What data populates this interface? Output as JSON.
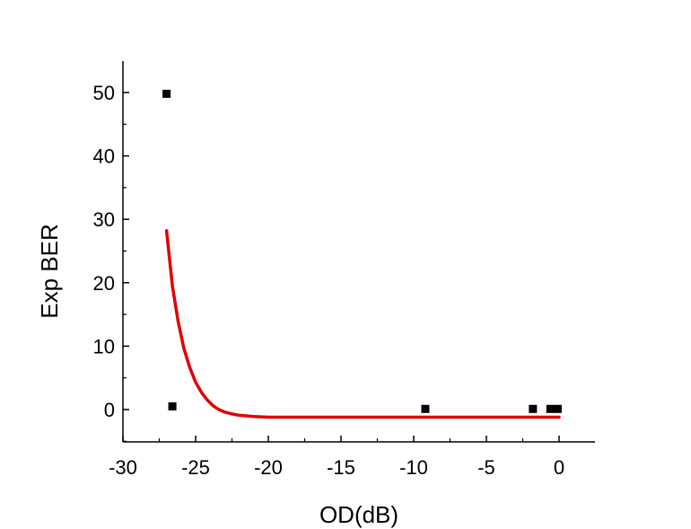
{
  "chart_data": {
    "type": "scatter",
    "xlabel": "OD(dB)",
    "ylabel": "Exp BER",
    "xlim": [
      -30,
      2.5
    ],
    "ylim": [
      -5,
      55
    ],
    "x_ticks": [
      -30,
      -25,
      -20,
      -15,
      -10,
      -5,
      0
    ],
    "x_tick_labels": [
      "-30",
      "-25",
      "-20",
      "-15",
      "-10",
      "-5",
      "0"
    ],
    "y_ticks": [
      0,
      10,
      20,
      30,
      40,
      50
    ],
    "y_tick_labels": [
      "0",
      "10",
      "20",
      "30",
      "40",
      "50"
    ],
    "grid": false,
    "series": [
      {
        "kind": "points",
        "marker": "square",
        "color": "#000000",
        "points": [
          {
            "x": -27.0,
            "y": 49.8
          },
          {
            "x": -26.6,
            "y": 0.5
          },
          {
            "x": -9.2,
            "y": 0.1
          },
          {
            "x": -1.8,
            "y": 0.1
          },
          {
            "x": -0.6,
            "y": 0.1
          },
          {
            "x": -0.1,
            "y": 0.1
          }
        ]
      },
      {
        "kind": "fit-line",
        "color": "#e00000",
        "points": [
          {
            "x": -27.0,
            "y": 28.2
          },
          {
            "x": -26.6,
            "y": 19.5
          },
          {
            "x": -26.2,
            "y": 13.8
          },
          {
            "x": -25.8,
            "y": 9.6
          },
          {
            "x": -25.4,
            "y": 6.6
          },
          {
            "x": -25.0,
            "y": 4.3
          },
          {
            "x": -24.6,
            "y": 2.7
          },
          {
            "x": -24.2,
            "y": 1.5
          },
          {
            "x": -23.8,
            "y": 0.6
          },
          {
            "x": -23.4,
            "y": 0.0
          },
          {
            "x": -23.0,
            "y": -0.4
          },
          {
            "x": -22.5,
            "y": -0.7
          },
          {
            "x": -22.0,
            "y": -0.9
          },
          {
            "x": -21.0,
            "y": -1.1
          },
          {
            "x": -20.0,
            "y": -1.2
          },
          {
            "x": -18.0,
            "y": -1.2
          },
          {
            "x": -15.0,
            "y": -1.2
          },
          {
            "x": -10.0,
            "y": -1.2
          },
          {
            "x": -5.0,
            "y": -1.2
          },
          {
            "x": 0.0,
            "y": -1.2
          }
        ]
      }
    ]
  }
}
